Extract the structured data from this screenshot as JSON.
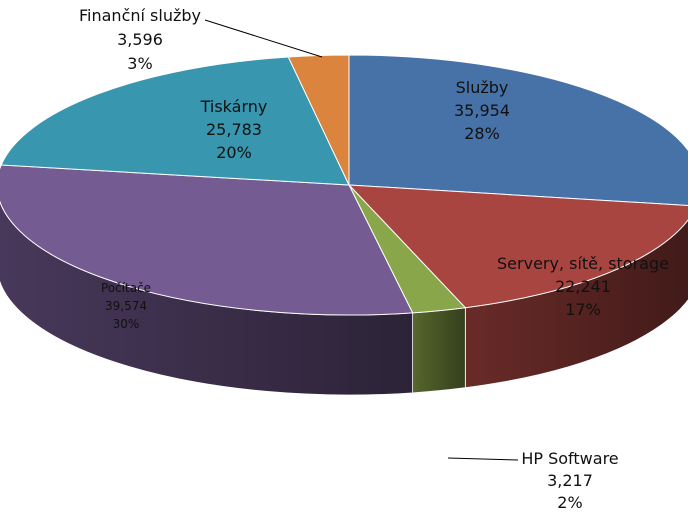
{
  "chart_data": {
    "type": "pie",
    "style": "3d",
    "title": "",
    "slices": [
      {
        "label": "Služby",
        "value": 35954,
        "value_text": "35,954",
        "percent_text": "28%",
        "color": "#4672A8"
      },
      {
        "label": "Servery, sítě, storage",
        "value": 22241,
        "value_text": "22,241",
        "percent_text": "17%",
        "color": "#A94541"
      },
      {
        "label": "HP Software",
        "value": 3217,
        "value_text": "3,217",
        "percent_text": "2%",
        "color": "#8AA64A"
      },
      {
        "label": "Počítače",
        "value": 39574,
        "value_text": "39,574",
        "percent_text": "30%",
        "color": "#745B92"
      },
      {
        "label": "Tiskárny",
        "value": 25783,
        "value_text": "25,783",
        "percent_text": "20%",
        "color": "#3896AF"
      },
      {
        "label": "Finanční služby",
        "value": 3596,
        "value_text": "3,596",
        "percent_text": "3%",
        "color": "#DB843D"
      }
    ]
  }
}
